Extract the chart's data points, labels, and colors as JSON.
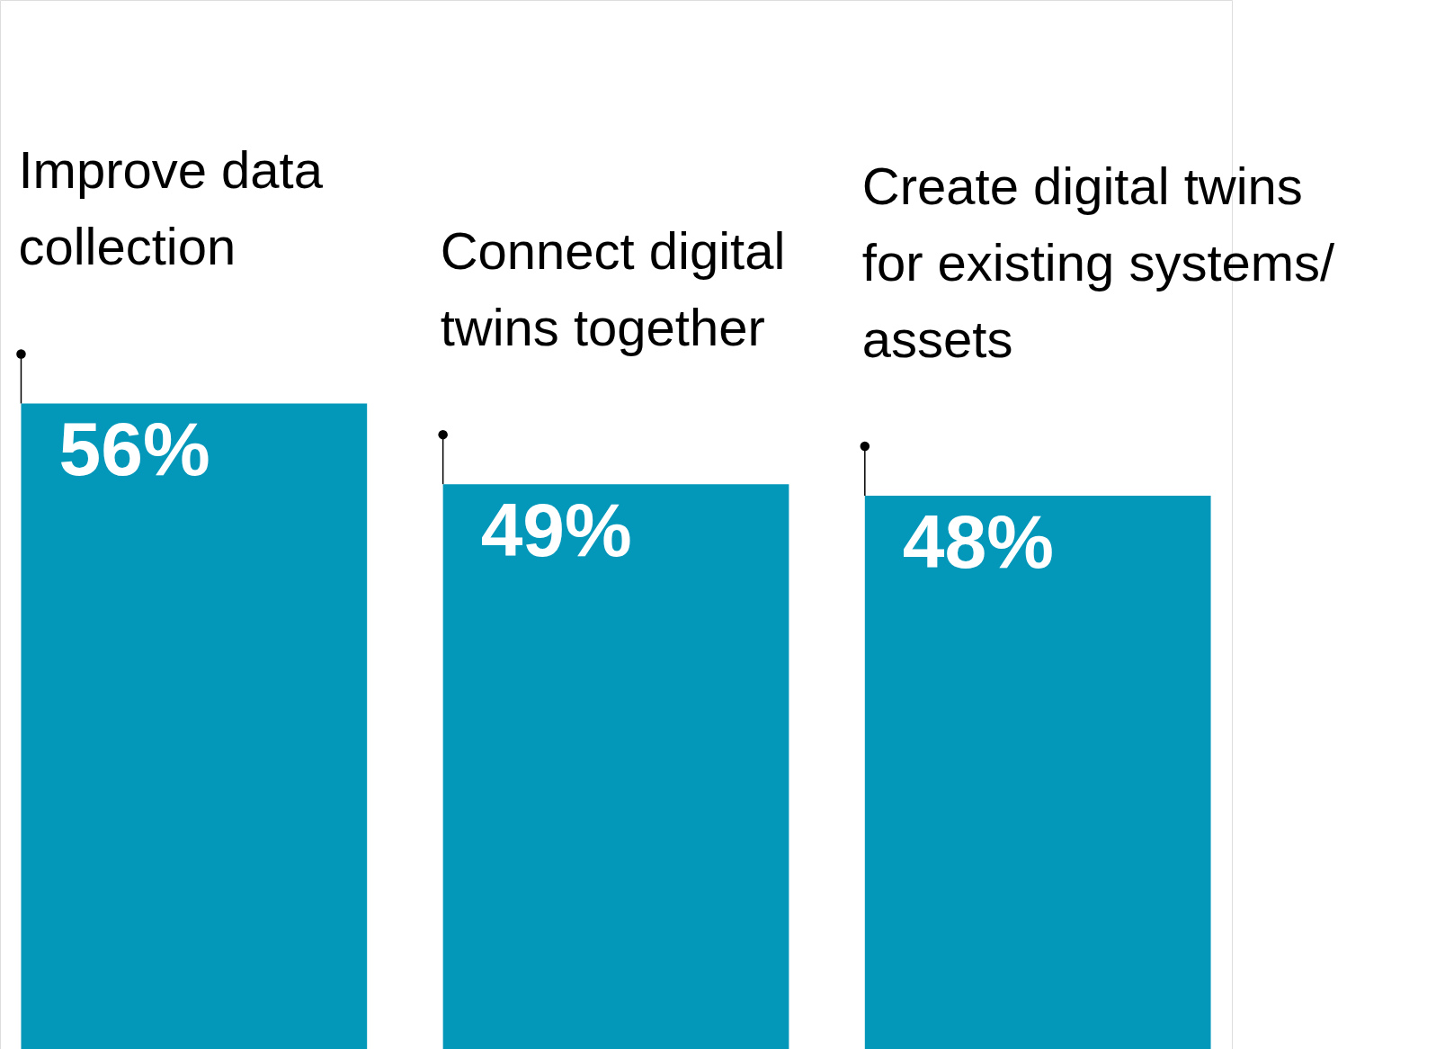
{
  "chart_data": {
    "type": "bar",
    "categories": [
      "Improve data collection",
      "Connect digital twins together",
      "Create digital twins for existing systems/assets"
    ],
    "values": [
      56,
      49,
      48
    ],
    "value_labels": [
      "56%",
      "49%",
      "48%"
    ],
    "color": "#0397ba",
    "ylim": [
      0,
      91
    ],
    "tick_labels": false
  }
}
